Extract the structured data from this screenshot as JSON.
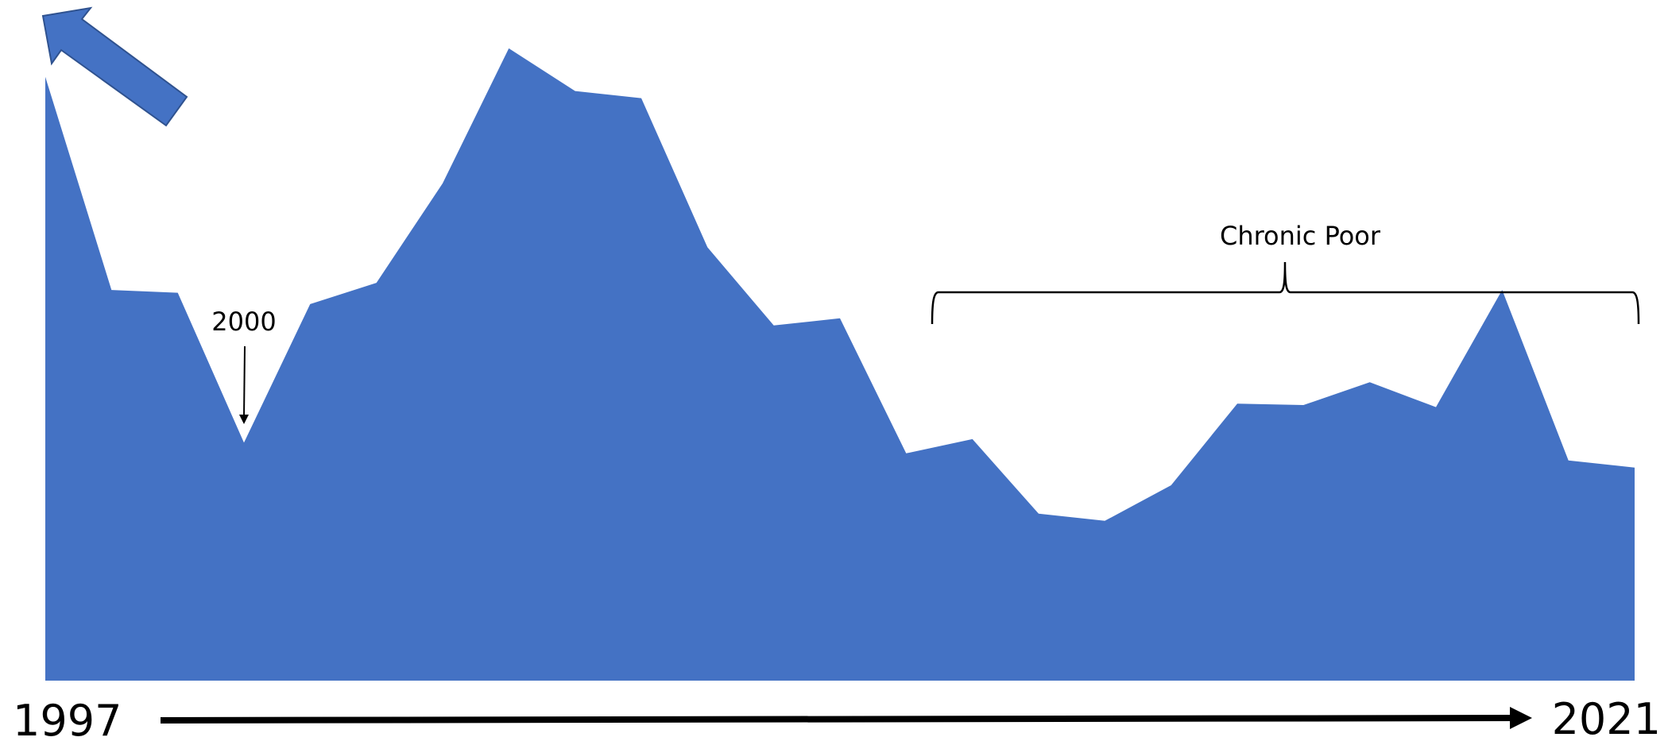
{
  "chart_data": {
    "type": "area",
    "title": "",
    "xlabel": "",
    "ylabel": "",
    "x_start_label": "1997",
    "x_end_label": "2021",
    "x": [
      1997,
      1998,
      1999,
      2000,
      2001,
      2002,
      2003,
      2004,
      2005,
      2006,
      2007,
      2008,
      2009,
      2010,
      2011,
      2012,
      2013,
      2014,
      2015,
      2016,
      2017,
      2018,
      2019,
      2020,
      2021
    ],
    "values": [
      85,
      55,
      54.6,
      33.5,
      53,
      56,
      70,
      89,
      83,
      82,
      61,
      50,
      51,
      32,
      34,
      23.5,
      22.5,
      27.5,
      39,
      38.8,
      42,
      38.5,
      55,
      31,
      30
    ],
    "ylim": [
      0,
      90
    ],
    "fill_color": "#4472C4",
    "annotations": {
      "point_label": "2000",
      "range_label": "Chronic Poor",
      "range": [
        2011,
        2021
      ]
    }
  }
}
